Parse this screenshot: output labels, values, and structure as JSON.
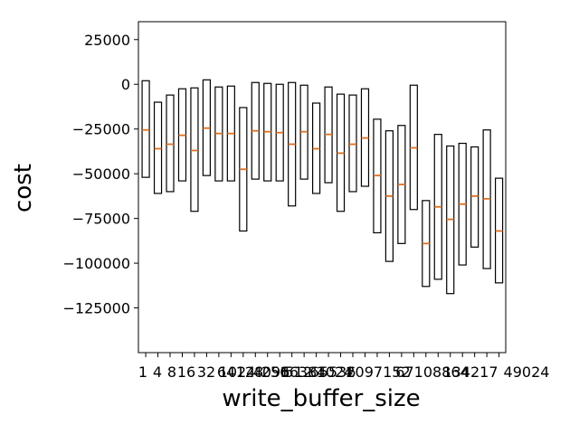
{
  "chart_data": {
    "type": "boxplot",
    "xlabel": "write_buffer_size",
    "ylabel": "cost",
    "ylim": [
      -150000,
      35000
    ],
    "y_ticks": [
      25000,
      0,
      -25000,
      -50000,
      -75000,
      -100000,
      -125000
    ],
    "y_tick_labels": [
      "25000",
      "0",
      "−25000",
      "−50000",
      "−75000",
      "−100000",
      "−125000"
    ],
    "x_tick_labels_visible": [
      "1",
      "4",
      "8",
      "16",
      "32",
      "64",
      "128",
      "256",
      "512",
      "1024"
    ],
    "highlight_color": "#d62728",
    "median_color": "#e07020",
    "series": [
      {
        "low": -52000,
        "high": 2000,
        "median": -25500
      },
      {
        "low": -61000,
        "high": -10000,
        "median": -36000
      },
      {
        "low": -60000,
        "high": -6000,
        "median": -33500
      },
      {
        "low": -54000,
        "high": -2500,
        "median": -28500
      },
      {
        "low": -71000,
        "high": -2000,
        "median": -37000
      },
      {
        "low": -51000,
        "high": 2500,
        "median": -24500
      },
      {
        "low": -54000,
        "high": -1500,
        "median": -27500
      },
      {
        "low": -54000,
        "high": -1000,
        "median": -27500
      },
      {
        "low": -82000,
        "high": -13000,
        "median": -47500
      },
      {
        "low": -53000,
        "high": 1000,
        "median": -26000
      },
      {
        "low": -54000,
        "high": 500,
        "median": -26500
      },
      {
        "low": -54000,
        "high": 0,
        "median": -27000
      },
      {
        "low": -68000,
        "high": 1000,
        "median": -33500
      },
      {
        "low": -53000,
        "high": -500,
        "median": -26500
      },
      {
        "low": -61000,
        "high": -10500,
        "median": -36000
      },
      {
        "low": -55000,
        "high": -1500,
        "median": -28000
      },
      {
        "low": -71000,
        "high": -5500,
        "median": -38500
      },
      {
        "low": -60000,
        "high": -6000,
        "median": -33500
      },
      {
        "low": -57000,
        "high": -2500,
        "median": -30000
      },
      {
        "low": -83000,
        "high": -19500,
        "median": -51000
      },
      {
        "low": -99000,
        "high": -26000,
        "median": -62500
      },
      {
        "low": -89000,
        "high": -23000,
        "median": -56000
      },
      {
        "low": -70000,
        "high": -500,
        "median": -35500
      },
      {
        "low": -113000,
        "high": -65000,
        "median": -89000
      },
      {
        "low": -109000,
        "high": -28000,
        "median": -68500
      },
      {
        "low": -117000,
        "high": -34500,
        "median": -75500
      },
      {
        "low": -101000,
        "high": -33000,
        "median": -67000
      },
      {
        "low": -91000,
        "high": -35000,
        "median": -62500
      },
      {
        "low": -103000,
        "high": -25500,
        "median": -64000
      },
      {
        "low": -111000,
        "high": -52500,
        "median": -82000
      }
    ]
  }
}
